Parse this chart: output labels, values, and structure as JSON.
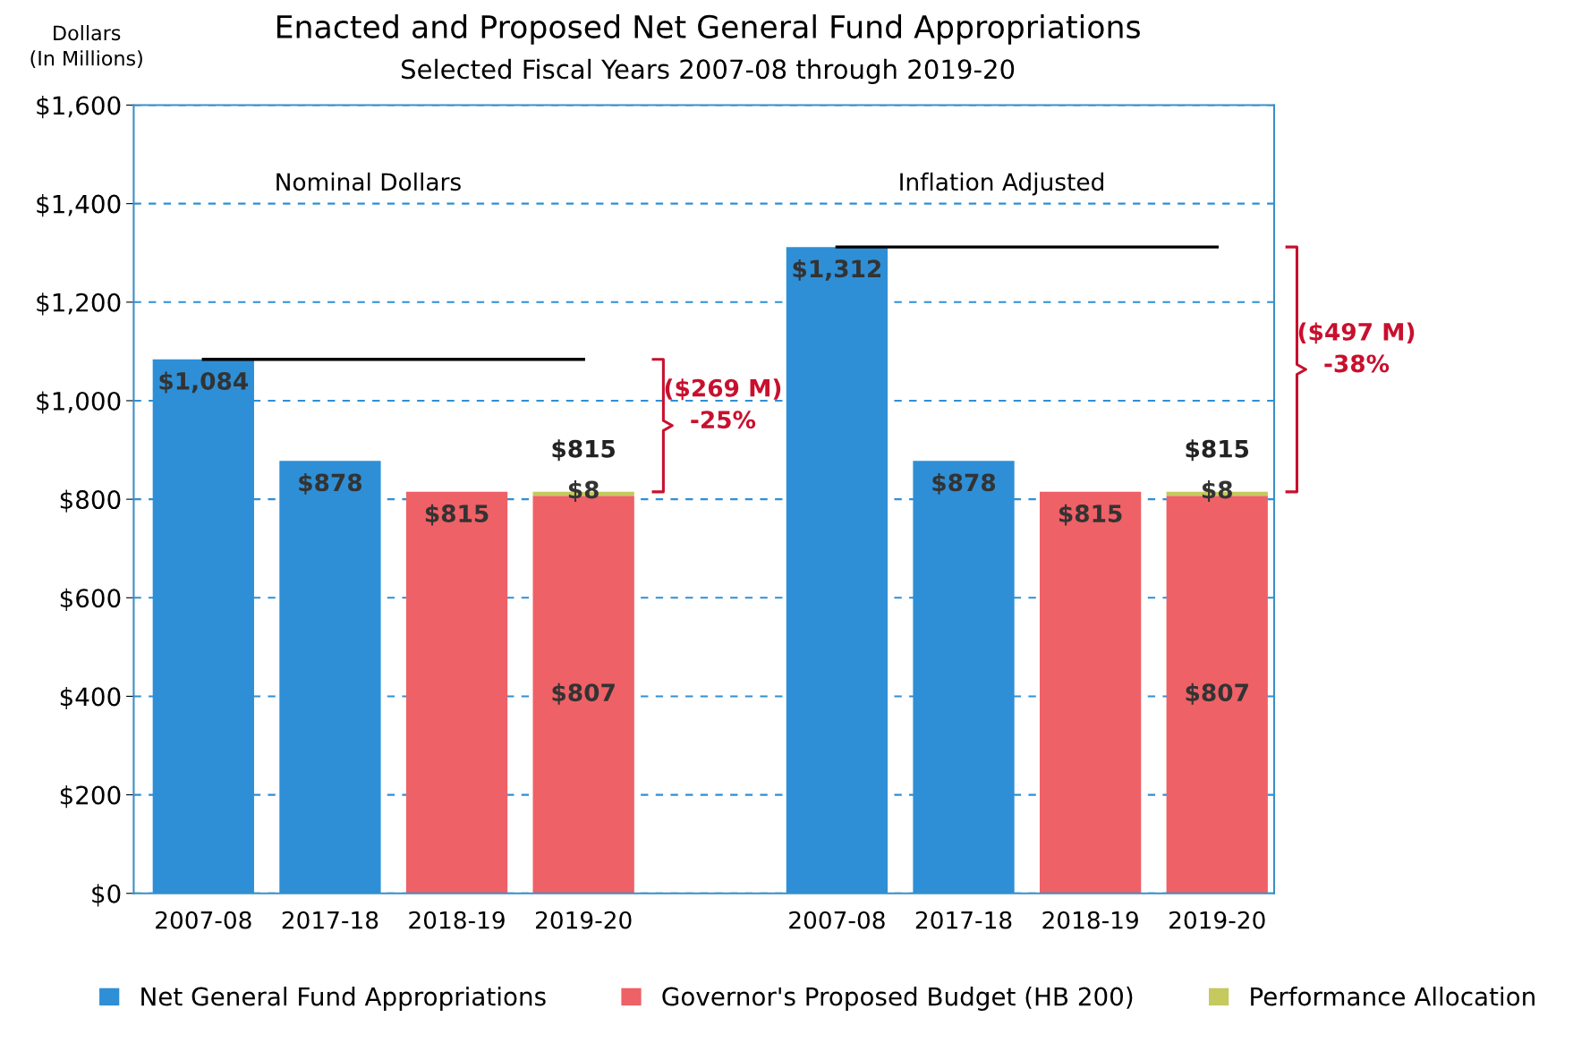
{
  "chart_data": {
    "type": "bar",
    "title": "Enacted and Proposed Net General Fund Appropriations",
    "subtitle": "Selected Fiscal Years 2007-08 through 2019-20",
    "ylabel": "Dollars\n(In Millions)",
    "categories": [
      "2007-08",
      "2017-18",
      "2018-19",
      "2019-20",
      null,
      "2007-08",
      "2017-18",
      "2018-19",
      "2019-20"
    ],
    "stacked": true,
    "series": [
      {
        "name": "Net General Fund Appropriations",
        "color": "#2e8fd6",
        "values": [
          1084,
          878,
          null,
          null,
          null,
          1312,
          878,
          null,
          null
        ],
        "value_labels": [
          "$1,084",
          "$878",
          null,
          null,
          null,
          "$1,312",
          "$878",
          null,
          null
        ]
      },
      {
        "name": "Governor's Proposed Budget (HB 200)",
        "color": "#ee6166",
        "values": [
          null,
          null,
          815,
          807,
          null,
          null,
          null,
          815,
          807
        ],
        "value_labels": [
          null,
          null,
          "$815",
          "$807",
          null,
          null,
          null,
          "$815",
          "$807"
        ]
      },
      {
        "name": "Performance Allocation",
        "color": "#c5c95e",
        "values": [
          null,
          null,
          null,
          8,
          null,
          null,
          null,
          null,
          8
        ],
        "value_labels": [
          null,
          null,
          null,
          "$8",
          null,
          null,
          null,
          null,
          "$8"
        ]
      },
      {
        "type": "line",
        "color": "#000000",
        "values": [
          1084,
          1084,
          1084,
          1084,
          null,
          1312,
          1312,
          1312,
          1312
        ]
      }
    ],
    "totals": [
      null,
      null,
      null,
      "$815",
      null,
      null,
      null,
      null,
      "$815"
    ],
    "annotations": [
      "Nominal Dollars",
      "Inflation Adjusted",
      "($269 M)\n-25%",
      "($497 M)\n-38%"
    ],
    "ylim": [
      0,
      1600
    ],
    "yticks": [
      {
        "value": 0,
        "label": "$0"
      },
      {
        "value": 200,
        "label": "$200"
      },
      {
        "value": 400,
        "label": "$400"
      },
      {
        "value": 600,
        "label": "$600"
      },
      {
        "value": 800,
        "label": "$800"
      },
      {
        "value": 1000,
        "label": "$1,000"
      },
      {
        "value": 1200,
        "label": "$1,200"
      },
      {
        "value": 1400,
        "label": "$1,400"
      },
      {
        "value": 1600,
        "label": "$1,600"
      }
    ],
    "grid": "y",
    "legend": "bottom",
    "line_style": "solid",
    "marker": "none"
  }
}
